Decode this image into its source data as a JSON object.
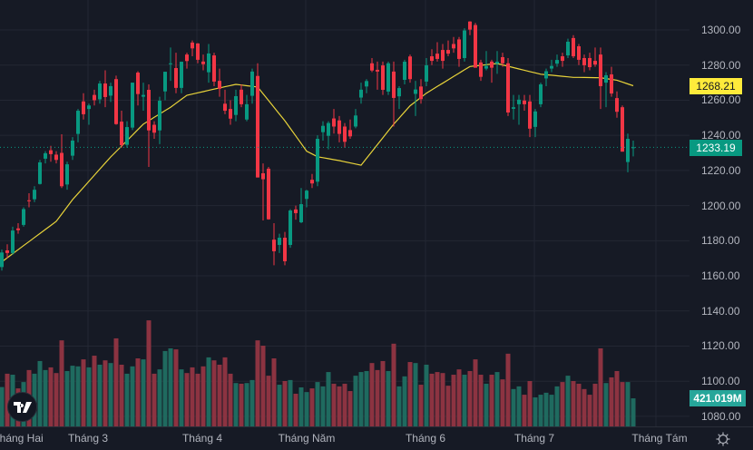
{
  "chart_data": {
    "type": "candlestick",
    "title": "",
    "x_month_labels": [
      "Tháng Hai",
      "Tháng 3",
      "Tháng 4",
      "Tháng Năm",
      "Tháng 6",
      "Tháng 7",
      "Tháng Tám"
    ],
    "y_ticks": [
      "1080.00",
      "1100.00",
      "1120.00",
      "1140.00",
      "1160.00",
      "1180.00",
      "1200.00",
      "1220.00",
      "1240.00",
      "1260.00",
      "1280.00",
      "1300.00"
    ],
    "ylim": [
      1078,
      1310
    ],
    "ohlc": [
      [
        1165,
        1175,
        1163,
        1173.3
      ],
      [
        1174.5,
        1178,
        1170,
        1173
      ],
      [
        1173,
        1188,
        1172,
        1185.8
      ],
      [
        1187,
        1190,
        1184,
        1186
      ],
      [
        1189,
        1199,
        1188,
        1198
      ],
      [
        1203,
        1207,
        1199,
        1202.5
      ],
      [
        1203.6,
        1211,
        1202,
        1209
      ],
      [
        1212.3,
        1226,
        1212,
        1224.6
      ],
      [
        1226.7,
        1231,
        1224,
        1229.8
      ],
      [
        1231.5,
        1234,
        1225,
        1229.3
      ],
      [
        1229,
        1231,
        1224,
        1226
      ],
      [
        1230,
        1240.6,
        1210,
        1211
      ],
      [
        1212,
        1225,
        1209,
        1223.5
      ],
      [
        1228.4,
        1239,
        1226,
        1237
      ],
      [
        1240.8,
        1255,
        1236,
        1254
      ],
      [
        1259.3,
        1264,
        1249,
        1252
      ],
      [
        1255,
        1258,
        1246,
        1257
      ],
      [
        1263,
        1266,
        1257,
        1260
      ],
      [
        1260.5,
        1271,
        1258,
        1269.5
      ],
      [
        1269.5,
        1277,
        1256,
        1261.8
      ],
      [
        1262.6,
        1270,
        1259,
        1268
      ],
      [
        1272,
        1274,
        1246,
        1246.4
      ],
      [
        1247.8,
        1254,
        1233,
        1234.4
      ],
      [
        1234.6,
        1248,
        1233,
        1244.7
      ],
      [
        1244.4,
        1270,
        1243,
        1270
      ],
      [
        1275.7,
        1276.5,
        1257,
        1263.5
      ],
      [
        1262,
        1270,
        1254,
        1263
      ],
      [
        1265.9,
        1269,
        1222,
        1242.8
      ],
      [
        1246,
        1248,
        1238,
        1241.5
      ],
      [
        1242.8,
        1262,
        1235,
        1259.7
      ],
      [
        1265,
        1276.2,
        1260,
        1276.2
      ],
      [
        1280.5,
        1290,
        1271,
        1281
      ],
      [
        1278.3,
        1287,
        1264,
        1267
      ],
      [
        1267,
        1282,
        1264,
        1281.9
      ],
      [
        1286,
        1287,
        1278,
        1282.3
      ],
      [
        1292.8,
        1294,
        1285,
        1289.5
      ],
      [
        1292.3,
        1292.5,
        1281,
        1283
      ],
      [
        1282,
        1286,
        1277,
        1280.5
      ],
      [
        1275.9,
        1292,
        1270,
        1286.6
      ],
      [
        1285.5,
        1287,
        1268,
        1270.6
      ],
      [
        1271,
        1278,
        1262,
        1266.5
      ],
      [
        1258,
        1266,
        1252,
        1254
      ],
      [
        1255,
        1260,
        1246,
        1249.5
      ],
      [
        1251.6,
        1266,
        1248,
        1262.3
      ],
      [
        1266,
        1269,
        1256,
        1257.7
      ],
      [
        1249,
        1263,
        1248,
        1257.7
      ],
      [
        1262.5,
        1278,
        1258,
        1276.3
      ],
      [
        1273.8,
        1281,
        1216,
        1216
      ],
      [
        1218.4,
        1224,
        1191.5,
        1215
      ],
      [
        1221,
        1222,
        1192,
        1192.2
      ],
      [
        1180.6,
        1190,
        1166,
        1174
      ],
      [
        1177.6,
        1184,
        1173,
        1181.7
      ],
      [
        1181.7,
        1185,
        1166,
        1168.3
      ],
      [
        1177.6,
        1198,
        1176,
        1197.2
      ],
      [
        1197.8,
        1200,
        1192,
        1195.7
      ],
      [
        1190.5,
        1210,
        1190,
        1200.8
      ],
      [
        1203.8,
        1209,
        1199,
        1208.5
      ],
      [
        1214.7,
        1218,
        1210,
        1212.6
      ],
      [
        1213.6,
        1240,
        1211,
        1238
      ],
      [
        1241.8,
        1248,
        1237,
        1245.4
      ],
      [
        1239.7,
        1248,
        1232,
        1247
      ],
      [
        1249.6,
        1255,
        1241,
        1245
      ],
      [
        1248.5,
        1251,
        1236,
        1240.8
      ],
      [
        1245,
        1247,
        1233,
        1236.3
      ],
      [
        1243,
        1249,
        1238,
        1239.4
      ],
      [
        1245,
        1255,
        1244,
        1251.3
      ],
      [
        1261.5,
        1270,
        1258,
        1266
      ],
      [
        1267.8,
        1272,
        1264,
        1270.9
      ],
      [
        1281,
        1284,
        1276,
        1276.9
      ],
      [
        1277.3,
        1282,
        1266,
        1276.3
      ],
      [
        1279.8,
        1282,
        1263,
        1265.9
      ],
      [
        1264.9,
        1282,
        1263,
        1281
      ],
      [
        1276.3,
        1282,
        1245,
        1261.3
      ],
      [
        1262.2,
        1268,
        1255,
        1266.9
      ],
      [
        1271.6,
        1283,
        1269,
        1281.9
      ],
      [
        1284.9,
        1286,
        1270,
        1272
      ],
      [
        1263.6,
        1271,
        1251,
        1266.1
      ],
      [
        1267.8,
        1272,
        1258,
        1260.6
      ],
      [
        1270.6,
        1284,
        1268,
        1279.9
      ],
      [
        1285,
        1289,
        1280,
        1282.4
      ],
      [
        1286.5,
        1293,
        1282,
        1283.5
      ],
      [
        1288.6,
        1292,
        1278,
        1282.4
      ],
      [
        1288.6,
        1294,
        1285,
        1286.5
      ],
      [
        1292,
        1296,
        1287,
        1289.5
      ],
      [
        1294.6,
        1296,
        1279,
        1283.5
      ],
      [
        1284,
        1301,
        1282,
        1299.7
      ],
      [
        1304.8,
        1305,
        1297,
        1300.2
      ],
      [
        1302.8,
        1304,
        1278.5,
        1278.5
      ],
      [
        1281.5,
        1283,
        1271,
        1273.3
      ],
      [
        1278,
        1288,
        1277,
        1279.5
      ],
      [
        1282,
        1283,
        1270,
        1278.5
      ],
      [
        1280.8,
        1288,
        1275,
        1281.9
      ],
      [
        1284.5,
        1287,
        1279,
        1281
      ],
      [
        1281,
        1284,
        1251,
        1253
      ],
      [
        1255.1,
        1263,
        1249,
        1256
      ],
      [
        1257.7,
        1263,
        1246,
        1260.3
      ],
      [
        1259.8,
        1263,
        1254,
        1257.7
      ],
      [
        1259.3,
        1263,
        1239,
        1243.8
      ],
      [
        1244.8,
        1255,
        1239,
        1253.6
      ],
      [
        1257.7,
        1270,
        1256,
        1269
      ],
      [
        1272.4,
        1278,
        1268,
        1276.5
      ],
      [
        1278,
        1283,
        1276,
        1279.5
      ],
      [
        1280.8,
        1286,
        1279,
        1282.9
      ],
      [
        1285,
        1287,
        1279,
        1282.4
      ],
      [
        1285.5,
        1295,
        1284,
        1293.3
      ],
      [
        1295.4,
        1297,
        1284,
        1285
      ],
      [
        1290.7,
        1292,
        1280,
        1283
      ],
      [
        1284,
        1286,
        1276,
        1279.9
      ],
      [
        1284,
        1287,
        1277,
        1278.8
      ],
      [
        1282.4,
        1290,
        1279,
        1280.3
      ],
      [
        1286,
        1290,
        1255,
        1268
      ],
      [
        1270,
        1276,
        1256,
        1274.2
      ],
      [
        1274.7,
        1279,
        1262,
        1263.8
      ],
      [
        1261.2,
        1265,
        1250,
        1253.4
      ],
      [
        1256,
        1257,
        1230.7,
        1230.7
      ],
      [
        1224.8,
        1241,
        1219,
        1238
      ],
      [
        1233,
        1237,
        1228,
        1233.19
      ]
    ],
    "volume_millions": [
      590,
      790,
      775,
      570,
      665,
      845,
      790,
      980,
      845,
      885,
      800,
      1290,
      830,
      910,
      900,
      1005,
      885,
      1060,
      925,
      990,
      950,
      1320,
      925,
      790,
      900,
      1020,
      1005,
      1590,
      790,
      855,
      1130,
      1170,
      1155,
      855,
      800,
      885,
      790,
      900,
      1035,
      990,
      925,
      1035,
      790,
      650,
      640,
      650,
      695,
      1290,
      1210,
      760,
      1020,
      625,
      680,
      695,
      490,
      585,
      515,
      570,
      665,
      600,
      815,
      640,
      600,
      640,
      530,
      760,
      815,
      830,
      950,
      845,
      980,
      830,
      1240,
      600,
      750,
      965,
      950,
      625,
      925,
      790,
      815,
      800,
      610,
      775,
      855,
      775,
      830,
      1005,
      775,
      640,
      775,
      815,
      705,
      1090,
      560,
      600,
      475,
      680,
      435,
      475,
      505,
      475,
      600,
      665,
      760,
      680,
      640,
      560,
      475,
      640,
      1170,
      650,
      735,
      830,
      665,
      665,
      421.019
    ],
    "moving_average_points": [
      [
        0,
        1168
      ],
      [
        10,
        1191
      ],
      [
        13,
        1203.4
      ],
      [
        20,
        1227.7
      ],
      [
        23,
        1237
      ],
      [
        26,
        1246.4
      ],
      [
        31,
        1256
      ],
      [
        34,
        1262.8
      ],
      [
        40,
        1267
      ],
      [
        43,
        1269
      ],
      [
        47,
        1267.5
      ],
      [
        52,
        1248.3
      ],
      [
        56,
        1231
      ],
      [
        58,
        1227.8
      ],
      [
        62,
        1225.6
      ],
      [
        66,
        1223
      ],
      [
        72,
        1246.4
      ],
      [
        75,
        1256.8
      ],
      [
        78,
        1264
      ],
      [
        86,
        1279.2
      ],
      [
        91,
        1280.9
      ],
      [
        95,
        1277.8
      ],
      [
        99,
        1274.8
      ],
      [
        105,
        1273
      ],
      [
        110,
        1272.8
      ],
      [
        113,
        1271.4
      ],
      [
        116,
        1268.21
      ]
    ],
    "ma_last_label": "1268.21",
    "last_price_label": "1233.19",
    "last_volume_label": "421.019M",
    "colors": {
      "up": "#089981",
      "down": "#f23645",
      "vol_up": "#1f6a5f",
      "vol_down": "#8c3341",
      "ma": "#e8d33a",
      "bg": "#161a25",
      "grid": "#232733"
    }
  },
  "logo_text": "TV"
}
